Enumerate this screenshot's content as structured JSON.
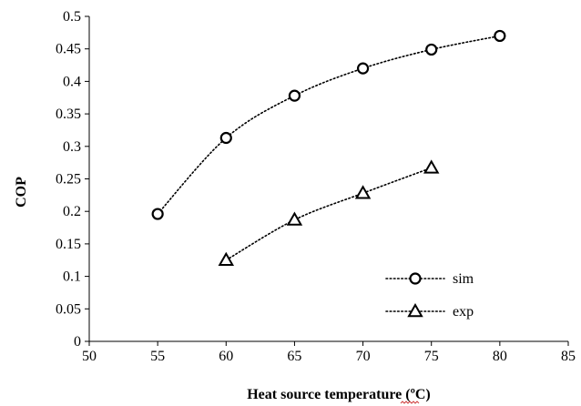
{
  "chart_data": {
    "type": "line",
    "xlabel": "Heat source temperature (ºC)",
    "ylabel": "COP",
    "xlim": [
      50,
      85
    ],
    "ylim": [
      0,
      0.5
    ],
    "xticks": [
      "50",
      "55",
      "60",
      "65",
      "70",
      "75",
      "80",
      "85"
    ],
    "yticks": [
      "0",
      "0.05",
      "0.1",
      "0.15",
      "0.2",
      "0.25",
      "0.3",
      "0.35",
      "0.4",
      "0.45",
      "0.5"
    ],
    "grid": false,
    "legend_position": "bottom-right",
    "series": [
      {
        "name": "sim",
        "marker": "circle",
        "line_style": "dotted",
        "color": "#000000",
        "x": [
          55,
          60,
          65,
          70,
          75,
          80
        ],
        "y": [
          0.196,
          0.313,
          0.378,
          0.42,
          0.449,
          0.47
        ]
      },
      {
        "name": "exp",
        "marker": "triangle",
        "line_style": "dotted",
        "color": "#000000",
        "x": [
          60,
          65,
          70,
          75
        ],
        "y": [
          0.125,
          0.187,
          0.228,
          0.267
        ]
      }
    ]
  }
}
